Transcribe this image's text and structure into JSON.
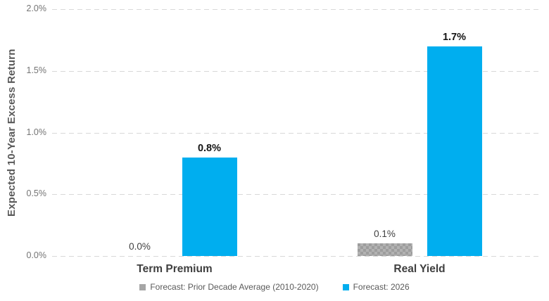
{
  "chart_data": {
    "type": "bar",
    "ylabel": "Expected 10-Year Excess Return",
    "xlabel": "",
    "categories": [
      "Term Premium",
      "Real Yield"
    ],
    "series": [
      {
        "name": "Forecast: Prior Decade Average (2010-2020)",
        "color": "#a6a6a6",
        "pattern": "checker",
        "label_bold": false,
        "values": [
          0.0,
          0.1
        ],
        "labels": [
          "0.0%",
          "0.1%"
        ]
      },
      {
        "name": "Forecast: 2026",
        "color": "#00AEEF",
        "pattern": null,
        "label_bold": true,
        "values": [
          0.8,
          1.7
        ],
        "labels": [
          "0.8%",
          "1.7%"
        ]
      }
    ],
    "ylim": [
      0,
      2.0
    ],
    "yticks": [
      0.0,
      0.5,
      1.0,
      1.5,
      2.0
    ],
    "ytick_labels": [
      "0.0%",
      "0.5%",
      "1.0%",
      "1.5%",
      "2.0%"
    ],
    "grid": "horizontal-dashed",
    "grid_color": "#d8d8d8",
    "background": "#ffffff",
    "legend_position": "bottom"
  }
}
